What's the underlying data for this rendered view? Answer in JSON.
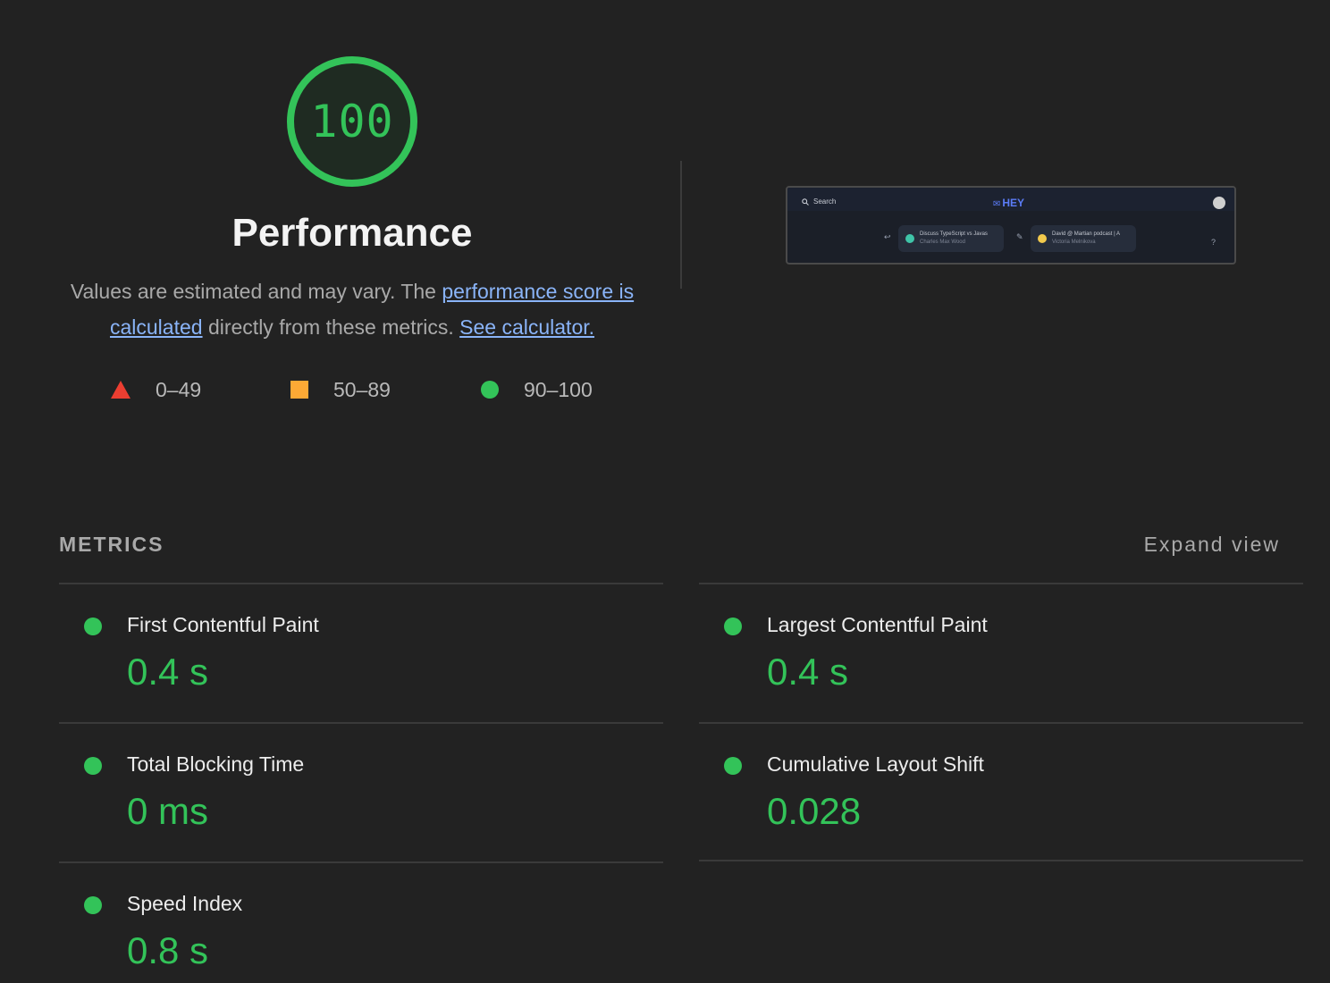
{
  "score": {
    "value": "100",
    "title": "Performance",
    "description_prefix": "Values are estimated and may vary. The ",
    "link_score": "performance score is calculated",
    "description_mid": " directly from these metrics. ",
    "link_calculator": "See calculator."
  },
  "legend": [
    {
      "range": "0–49",
      "shape": "triangle",
      "color": "#ec3e31"
    },
    {
      "range": "50–89",
      "shape": "square",
      "color": "#fda935"
    },
    {
      "range": "90–100",
      "shape": "circle",
      "color": "#33c359"
    }
  ],
  "thumbnail": {
    "search_label": "Search",
    "logo": "HEY",
    "card1_title": "Discuss TypeScript vs Javas",
    "card1_sub": "Charles Max Wood",
    "card2_title": "David @ Martian podcast | A",
    "card2_sub": "Victoria Melnikova",
    "help_glyph": "?"
  },
  "metrics": {
    "heading": "METRICS",
    "expand_label": "Expand view",
    "items": [
      {
        "label": "First Contentful Paint",
        "value": "0.4 s",
        "status": "good"
      },
      {
        "label": "Largest Contentful Paint",
        "value": "0.4 s",
        "status": "good"
      },
      {
        "label": "Total Blocking Time",
        "value": "0 ms",
        "status": "good"
      },
      {
        "label": "Cumulative Layout Shift",
        "value": "0.028",
        "status": "good"
      },
      {
        "label": "Speed Index",
        "value": "0.8 s",
        "status": "good"
      }
    ]
  },
  "colors": {
    "good": "#33c359",
    "average": "#fda935",
    "poor": "#ec3e31",
    "link": "#8ab4f8"
  }
}
